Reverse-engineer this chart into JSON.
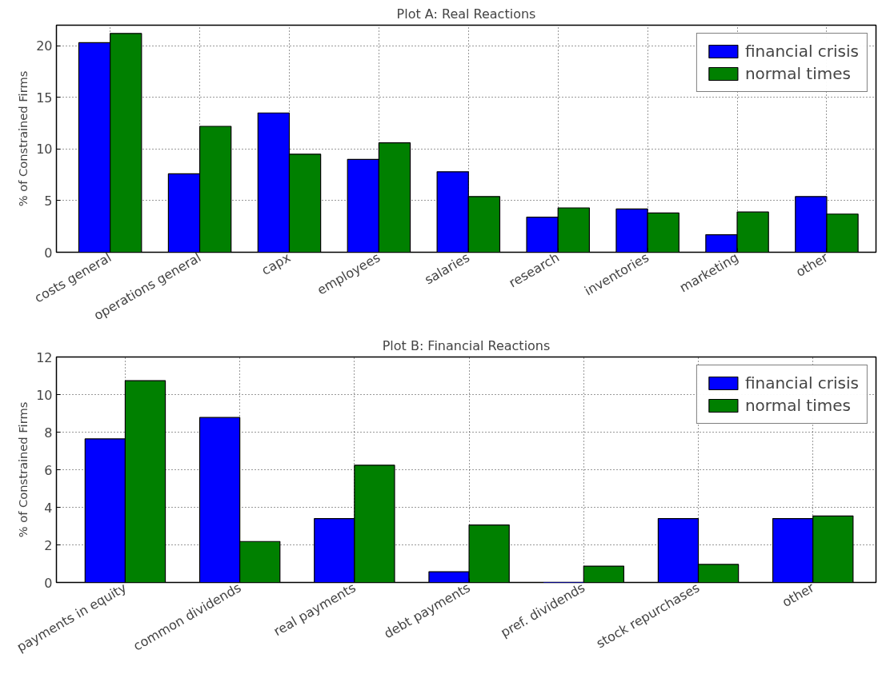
{
  "chart_data": [
    {
      "type": "bar",
      "title": "Plot A: Real Reactions",
      "ylabel": "% of Constrained Firms",
      "categories": [
        "costs general",
        "operations general",
        "capx",
        "employees",
        "salaries",
        "research",
        "inventories",
        "marketing",
        "other"
      ],
      "series": [
        {
          "name": "financial crisis",
          "color": "#0000ff",
          "values": [
            20.3,
            7.6,
            13.5,
            9.0,
            7.8,
            3.4,
            4.2,
            1.7,
            5.4
          ]
        },
        {
          "name": "normal times",
          "color": "#008000",
          "values": [
            21.2,
            12.2,
            9.5,
            10.6,
            5.4,
            4.3,
            3.8,
            3.9,
            3.7
          ]
        }
      ],
      "ylim": [
        0,
        22
      ],
      "yticks": [
        0,
        5,
        10,
        15,
        20
      ],
      "grid": true,
      "legend": "top right"
    },
    {
      "type": "bar",
      "title": "Plot B: Financial Reactions",
      "ylabel": "% of Constrained Firms",
      "categories": [
        "payments in equity",
        "common dividends",
        "real payments",
        "debt payments",
        "pref. dividends",
        "stock repurchases",
        "other"
      ],
      "series": [
        {
          "name": "financial crisis",
          "color": "#0000ff",
          "values": [
            7.64,
            8.78,
            3.4,
            0.57,
            0,
            3.4,
            3.4
          ]
        },
        {
          "name": "normal times",
          "color": "#008000",
          "values": [
            10.74,
            2.18,
            6.24,
            3.06,
            0.87,
            0.96,
            3.54
          ]
        }
      ],
      "ylim": [
        0,
        12
      ],
      "yticks": [
        0,
        2,
        4,
        6,
        8,
        10,
        12
      ],
      "grid": true,
      "legend": "top right"
    }
  ]
}
